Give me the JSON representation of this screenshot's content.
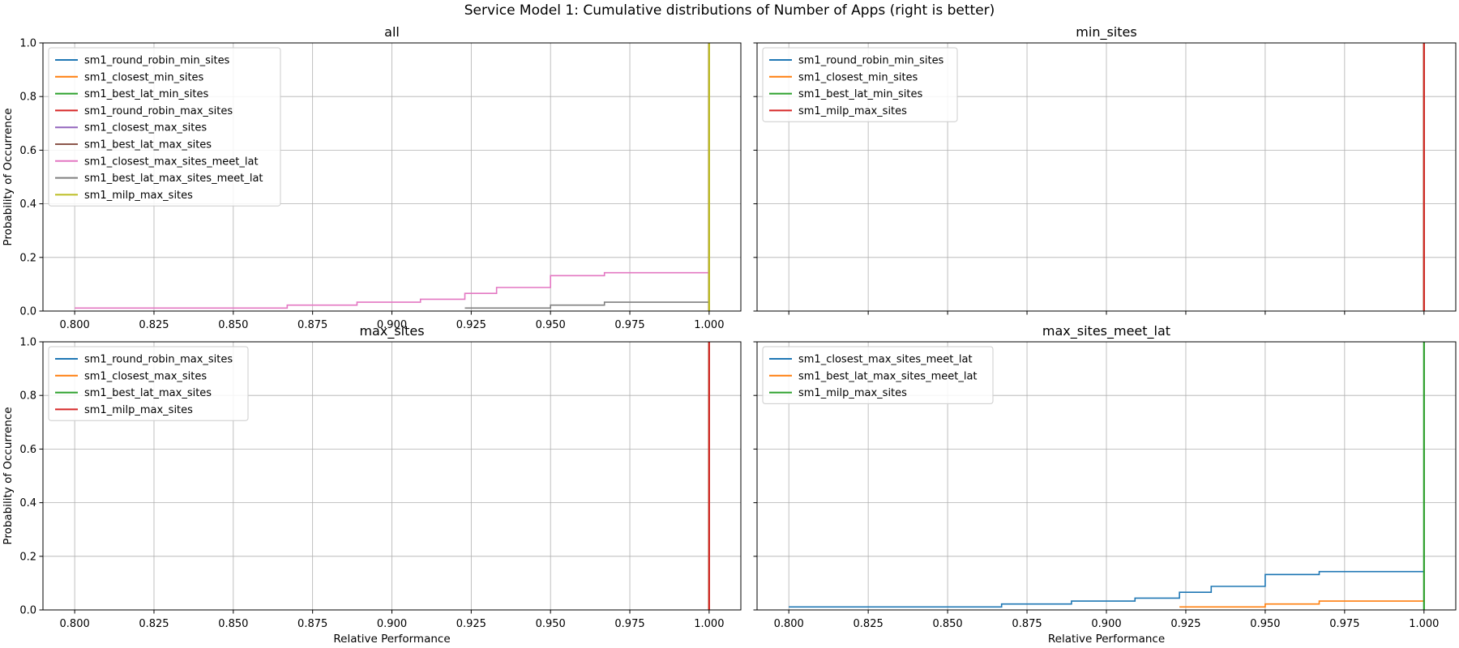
{
  "figure": {
    "title": "Service Model 1: Cumulative distributions of Number of Apps (right is better)"
  },
  "chart_data": [
    {
      "type": "line",
      "step": true,
      "title": "all",
      "xlabel": "",
      "ylabel": "Probability of Occurrence",
      "xlim": [
        0.8,
        1.0
      ],
      "ylim": [
        0,
        1
      ],
      "grid": true,
      "legend": "top-left",
      "xticks": [
        "0.800",
        "0.825",
        "0.850",
        "0.875",
        "0.900",
        "0.925",
        "0.950",
        "0.975",
        "1.000"
      ],
      "yticks": [
        "0.0",
        "0.2",
        "0.4",
        "0.6",
        "0.8",
        "1.0"
      ],
      "series": [
        {
          "name": "sm1_round_robin_min_sites",
          "color": "#1f77b4",
          "x": [
            1.0,
            1.0
          ],
          "y": [
            0.0,
            1.0
          ]
        },
        {
          "name": "sm1_closest_min_sites",
          "color": "#ff7f0e",
          "x": [
            1.0,
            1.0
          ],
          "y": [
            0.0,
            1.0
          ]
        },
        {
          "name": "sm1_best_lat_min_sites",
          "color": "#2ca02c",
          "x": [
            1.0,
            1.0
          ],
          "y": [
            0.0,
            1.0
          ]
        },
        {
          "name": "sm1_round_robin_max_sites",
          "color": "#d62728",
          "x": [
            1.0,
            1.0
          ],
          "y": [
            0.0,
            1.0
          ]
        },
        {
          "name": "sm1_closest_max_sites",
          "color": "#9467bd",
          "x": [
            1.0,
            1.0
          ],
          "y": [
            0.0,
            1.0
          ]
        },
        {
          "name": "sm1_best_lat_max_sites",
          "color": "#8c564b",
          "x": [
            1.0,
            1.0
          ],
          "y": [
            0.0,
            1.0
          ]
        },
        {
          "name": "sm1_closest_max_sites_meet_lat",
          "color": "#e377c2",
          "x": [
            0.8,
            0.867,
            0.889,
            0.909,
            0.923,
            0.933,
            0.95,
            0.967,
            1.0,
            1.0
          ],
          "y": [
            0.011,
            0.022,
            0.033,
            0.044,
            0.066,
            0.088,
            0.132,
            0.143,
            0.143,
            1.0
          ]
        },
        {
          "name": "sm1_best_lat_max_sites_meet_lat",
          "color": "#7f7f7f",
          "x": [
            0.923,
            0.95,
            0.967,
            1.0,
            1.0
          ],
          "y": [
            0.011,
            0.022,
            0.033,
            0.033,
            1.0
          ]
        },
        {
          "name": "sm1_milp_max_sites",
          "color": "#bcbd22",
          "x": [
            1.0,
            1.0
          ],
          "y": [
            0.0,
            1.0
          ]
        }
      ]
    },
    {
      "type": "line",
      "step": true,
      "title": "min_sites",
      "xlabel": "",
      "ylabel": "",
      "xlim": [
        0.8,
        1.0
      ],
      "ylim": [
        0,
        1
      ],
      "grid": true,
      "legend": "top-left",
      "xticks": [],
      "yticks": [],
      "series": [
        {
          "name": "sm1_round_robin_min_sites",
          "color": "#1f77b4",
          "x": [
            1.0,
            1.0
          ],
          "y": [
            0.0,
            1.0
          ]
        },
        {
          "name": "sm1_closest_min_sites",
          "color": "#ff7f0e",
          "x": [
            1.0,
            1.0
          ],
          "y": [
            0.0,
            1.0
          ]
        },
        {
          "name": "sm1_best_lat_min_sites",
          "color": "#2ca02c",
          "x": [
            1.0,
            1.0
          ],
          "y": [
            0.0,
            1.0
          ]
        },
        {
          "name": "sm1_milp_max_sites",
          "color": "#d62728",
          "x": [
            1.0,
            1.0
          ],
          "y": [
            0.0,
            1.0
          ]
        }
      ]
    },
    {
      "type": "line",
      "step": true,
      "title": "max_sites",
      "xlabel": "Relative Performance",
      "ylabel": "Probability of Occurrence",
      "xlim": [
        0.8,
        1.0
      ],
      "ylim": [
        0,
        1
      ],
      "grid": true,
      "legend": "top-left",
      "xticks": [
        "0.800",
        "0.825",
        "0.850",
        "0.875",
        "0.900",
        "0.925",
        "0.950",
        "0.975",
        "1.000"
      ],
      "yticks": [
        "0.0",
        "0.2",
        "0.4",
        "0.6",
        "0.8",
        "1.0"
      ],
      "series": [
        {
          "name": "sm1_round_robin_max_sites",
          "color": "#1f77b4",
          "x": [
            1.0,
            1.0
          ],
          "y": [
            0.0,
            1.0
          ]
        },
        {
          "name": "sm1_closest_max_sites",
          "color": "#ff7f0e",
          "x": [
            1.0,
            1.0
          ],
          "y": [
            0.0,
            1.0
          ]
        },
        {
          "name": "sm1_best_lat_max_sites",
          "color": "#2ca02c",
          "x": [
            1.0,
            1.0
          ],
          "y": [
            0.0,
            1.0
          ]
        },
        {
          "name": "sm1_milp_max_sites",
          "color": "#d62728",
          "x": [
            1.0,
            1.0
          ],
          "y": [
            0.0,
            1.0
          ]
        }
      ]
    },
    {
      "type": "line",
      "step": true,
      "title": "max_sites_meet_lat",
      "xlabel": "Relative Performance",
      "ylabel": "",
      "xlim": [
        0.8,
        1.0
      ],
      "ylim": [
        0,
        1
      ],
      "grid": true,
      "legend": "top-left",
      "xticks": [
        "0.800",
        "0.825",
        "0.850",
        "0.875",
        "0.900",
        "0.925",
        "0.950",
        "0.975",
        "1.000"
      ],
      "yticks": [],
      "series": [
        {
          "name": "sm1_closest_max_sites_meet_lat",
          "color": "#1f77b4",
          "x": [
            0.8,
            0.867,
            0.889,
            0.909,
            0.923,
            0.933,
            0.95,
            0.967,
            1.0,
            1.0
          ],
          "y": [
            0.011,
            0.022,
            0.033,
            0.044,
            0.066,
            0.088,
            0.132,
            0.143,
            0.143,
            1.0
          ]
        },
        {
          "name": "sm1_best_lat_max_sites_meet_lat",
          "color": "#ff7f0e",
          "x": [
            0.923,
            0.95,
            0.967,
            1.0,
            1.0
          ],
          "y": [
            0.011,
            0.022,
            0.033,
            0.033,
            1.0
          ]
        },
        {
          "name": "sm1_milp_max_sites",
          "color": "#2ca02c",
          "x": [
            1.0,
            1.0
          ],
          "y": [
            0.0,
            1.0
          ]
        }
      ]
    }
  ]
}
